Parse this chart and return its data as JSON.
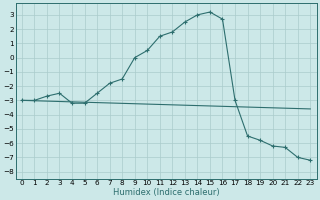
{
  "xlabel": "Humidex (Indice chaleur)",
  "background_color": "#cce8e8",
  "line_color": "#2d6e6e",
  "grid_color": "#aacccc",
  "xlim": [
    -0.5,
    23.5
  ],
  "ylim": [
    -8.5,
    3.8
  ],
  "xticks": [
    0,
    1,
    2,
    3,
    4,
    5,
    6,
    7,
    8,
    9,
    10,
    11,
    12,
    13,
    14,
    15,
    16,
    17,
    18,
    19,
    20,
    21,
    22,
    23
  ],
  "yticks": [
    -8,
    -7,
    -6,
    -5,
    -4,
    -3,
    -2,
    -1,
    0,
    1,
    2,
    3
  ],
  "line1_x": [
    0,
    1,
    2,
    3,
    4,
    5,
    6,
    7,
    8,
    9,
    10,
    11,
    12,
    13,
    14,
    15,
    16,
    17,
    18,
    19,
    20,
    21,
    22,
    23
  ],
  "line1_y": [
    -3.0,
    -3.0,
    -2.7,
    -2.5,
    -3.2,
    -3.2,
    -2.5,
    -1.8,
    -1.5,
    0.0,
    0.5,
    1.5,
    1.8,
    2.5,
    3.0,
    3.2,
    2.7,
    -3.0,
    -5.5,
    -5.8,
    -6.2,
    -6.3,
    -7.0,
    -7.2
  ],
  "line2_x": [
    0,
    23
  ],
  "line2_y": [
    -3.0,
    -3.6
  ],
  "xlabel_fontsize": 6.0,
  "tick_fontsize": 5.2
}
